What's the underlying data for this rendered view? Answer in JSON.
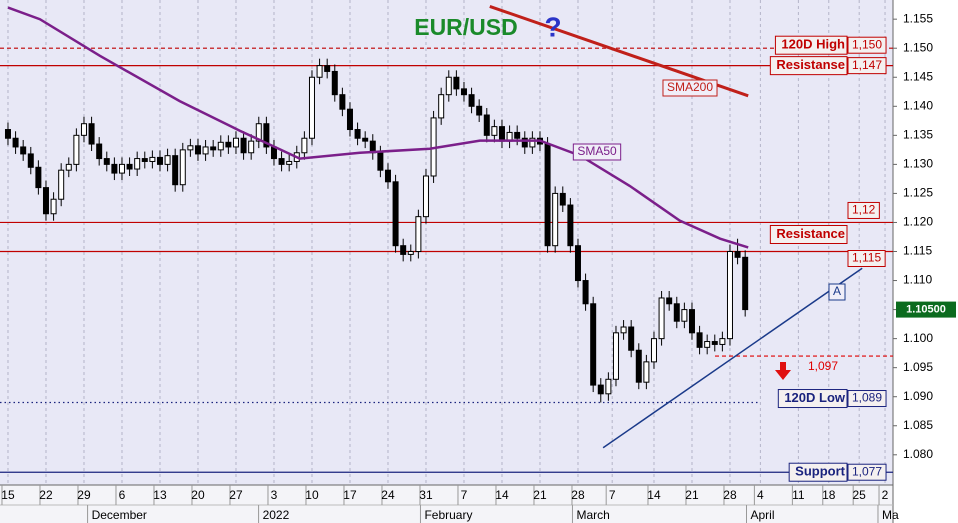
{
  "chart_data": {
    "type": "candlestick",
    "title": "EUR/USD",
    "title_mark": "?",
    "grid": true,
    "up_color": "#ffffff",
    "down_color": "#000000",
    "x": [
      0,
      1,
      2,
      3,
      4,
      5,
      6,
      7,
      8,
      9,
      10,
      11,
      12,
      13,
      14,
      15,
      16,
      17,
      18,
      19,
      20,
      21,
      22,
      23,
      24,
      25,
      26,
      27,
      28,
      29,
      30,
      31,
      32,
      33,
      34,
      35,
      36,
      37,
      38,
      39,
      40,
      41,
      42,
      43,
      44,
      45,
      46,
      47,
      48,
      49,
      50,
      51,
      52,
      53,
      54,
      55,
      56,
      57,
      58,
      59,
      60,
      61,
      62,
      63,
      64,
      65,
      66,
      67,
      68,
      69,
      70,
      71,
      72,
      73,
      74,
      75,
      76,
      77,
      78,
      79,
      80,
      81,
      82,
      83,
      84,
      85,
      86,
      87,
      88,
      89,
      90,
      91,
      92,
      93,
      94,
      95,
      96,
      97
    ],
    "open": [
      1.136,
      1.1345,
      1.133,
      1.1318,
      1.1295,
      1.126,
      1.1215,
      1.124,
      1.129,
      1.13,
      1.135,
      1.137,
      1.1335,
      1.131,
      1.13,
      1.1285,
      1.13,
      1.1292,
      1.131,
      1.1305,
      1.1312,
      1.13,
      1.1315,
      1.1265,
      1.1325,
      1.1332,
      1.1318,
      1.133,
      1.1325,
      1.1338,
      1.133,
      1.1345,
      1.132,
      1.134,
      1.137,
      1.133,
      1.131,
      1.13,
      1.1305,
      1.132,
      1.1345,
      1.145,
      1.147,
      1.146,
      1.142,
      1.1395,
      1.136,
      1.1345,
      1.134,
      1.132,
      1.129,
      1.127,
      1.116,
      1.1145,
      1.115,
      1.121,
      1.128,
      1.138,
      1.142,
      1.145,
      1.143,
      1.142,
      1.14,
      1.1385,
      1.135,
      1.1365,
      1.134,
      1.1355,
      1.1345,
      1.133,
      1.1345,
      1.1335,
      1.116,
      1.125,
      1.123,
      1.116,
      1.11,
      1.106,
      1.092,
      1.0905,
      1.093,
      1.101,
      1.102,
      1.098,
      1.0925,
      1.096,
      1.1,
      1.107,
      1.106,
      1.103,
      1.105,
      1.101,
      1.0985,
      1.0995,
      1.099,
      1.1,
      1.115,
      1.114
    ],
    "high": [
      1.1372,
      1.1357,
      1.1342,
      1.133,
      1.1307,
      1.1272,
      1.1252,
      1.1302,
      1.1312,
      1.1362,
      1.1382,
      1.1382,
      1.1347,
      1.1322,
      1.1312,
      1.1312,
      1.1312,
      1.1322,
      1.1322,
      1.1324,
      1.1324,
      1.1327,
      1.1327,
      1.1337,
      1.1344,
      1.1344,
      1.1342,
      1.1342,
      1.135,
      1.135,
      1.1357,
      1.1357,
      1.1352,
      1.1382,
      1.1382,
      1.1342,
      1.1322,
      1.1317,
      1.1332,
      1.1357,
      1.1462,
      1.1482,
      1.1482,
      1.1472,
      1.1432,
      1.1407,
      1.1372,
      1.1357,
      1.1352,
      1.1332,
      1.1302,
      1.1282,
      1.1172,
      1.1162,
      1.1222,
      1.1292,
      1.1392,
      1.1432,
      1.1462,
      1.1462,
      1.1442,
      1.1432,
      1.1412,
      1.1397,
      1.1377,
      1.1377,
      1.1367,
      1.1367,
      1.1357,
      1.1357,
      1.1357,
      1.1347,
      1.1262,
      1.1262,
      1.1242,
      1.1172,
      1.1112,
      1.1072,
      1.0932,
      1.0942,
      1.1022,
      1.1032,
      1.1032,
      1.0992,
      1.0972,
      1.1012,
      1.1082,
      1.1082,
      1.1072,
      1.1062,
      1.1062,
      1.1022,
      1.1007,
      1.1007,
      1.1012,
      1.1162,
      1.1172,
      1.1152
    ],
    "low": [
      1.1333,
      1.1318,
      1.1306,
      1.1283,
      1.1248,
      1.1203,
      1.1203,
      1.1228,
      1.1278,
      1.1288,
      1.1338,
      1.1323,
      1.1298,
      1.1288,
      1.1273,
      1.1273,
      1.128,
      1.128,
      1.1293,
      1.1293,
      1.1288,
      1.1288,
      1.1253,
      1.1253,
      1.1313,
      1.1306,
      1.1306,
      1.1313,
      1.1313,
      1.1318,
      1.1318,
      1.1308,
      1.1308,
      1.1328,
      1.1318,
      1.1298,
      1.1288,
      1.1288,
      1.1293,
      1.1308,
      1.1333,
      1.1438,
      1.1448,
      1.1408,
      1.1383,
      1.1348,
      1.1333,
      1.1328,
      1.1308,
      1.1278,
      1.1258,
      1.1148,
      1.1133,
      1.1133,
      1.1138,
      1.1198,
      1.1268,
      1.1368,
      1.1408,
      1.1418,
      1.1408,
      1.1388,
      1.1373,
      1.1338,
      1.1338,
      1.1328,
      1.1328,
      1.1333,
      1.1318,
      1.1318,
      1.1323,
      1.1148,
      1.1148,
      1.1218,
      1.1148,
      1.1088,
      1.1048,
      1.0908,
      1.089,
      1.0893,
      1.0918,
      1.0998,
      1.0968,
      1.0913,
      1.0913,
      1.0948,
      1.0988,
      1.1048,
      1.1018,
      1.1018,
      1.0998,
      1.0973,
      1.0973,
      1.0978,
      1.0978,
      1.0988,
      1.1128,
      1.1038
    ],
    "close": [
      1.1345,
      1.133,
      1.1318,
      1.1295,
      1.126,
      1.1215,
      1.124,
      1.129,
      1.13,
      1.135,
      1.137,
      1.1335,
      1.131,
      1.13,
      1.1285,
      1.13,
      1.1292,
      1.131,
      1.1305,
      1.1312,
      1.13,
      1.1315,
      1.1265,
      1.1325,
      1.1332,
      1.1318,
      1.133,
      1.1325,
      1.1338,
      1.133,
      1.1345,
      1.132,
      1.134,
      1.137,
      1.133,
      1.131,
      1.13,
      1.1305,
      1.132,
      1.1345,
      1.145,
      1.147,
      1.146,
      1.142,
      1.1395,
      1.136,
      1.1345,
      1.134,
      1.132,
      1.129,
      1.127,
      1.116,
      1.1145,
      1.115,
      1.121,
      1.128,
      1.138,
      1.142,
      1.145,
      1.143,
      1.142,
      1.14,
      1.1385,
      1.135,
      1.1365,
      1.134,
      1.1355,
      1.1345,
      1.133,
      1.1345,
      1.1335,
      1.116,
      1.125,
      1.123,
      1.116,
      1.11,
      1.106,
      1.092,
      1.0905,
      1.093,
      1.101,
      1.102,
      1.098,
      1.0925,
      1.096,
      1.1,
      1.107,
      1.106,
      1.103,
      1.105,
      1.101,
      1.0985,
      1.0995,
      1.099,
      1.1,
      1.115,
      1.114,
      1.105
    ],
    "xlim": [
      -1.05,
      116.45
    ],
    "ylim": [
      1.0748,
      1.1583
    ],
    "xticks": [
      {
        "value": 0,
        "label": "15"
      },
      {
        "value": 5,
        "label": "22"
      },
      {
        "value": 10,
        "label": "29"
      },
      {
        "value": 15,
        "label": "6"
      },
      {
        "value": 20,
        "label": "13"
      },
      {
        "value": 25,
        "label": "20"
      },
      {
        "value": 30,
        "label": "27"
      },
      {
        "value": 35,
        "label": "3"
      },
      {
        "value": 40,
        "label": "10"
      },
      {
        "value": 45,
        "label": "17"
      },
      {
        "value": 50,
        "label": "24"
      },
      {
        "value": 55,
        "label": "31"
      },
      {
        "value": 60,
        "label": "7"
      },
      {
        "value": 65,
        "label": "14"
      },
      {
        "value": 70,
        "label": "21"
      },
      {
        "value": 75,
        "label": "28"
      },
      {
        "value": 79.5,
        "label": "7"
      },
      {
        "value": 85,
        "label": "14"
      },
      {
        "value": 90,
        "label": "21"
      },
      {
        "value": 95,
        "label": "28"
      },
      {
        "value": 99,
        "label": "4"
      },
      {
        "value": 104,
        "label": "11"
      },
      {
        "value": 108,
        "label": "18"
      },
      {
        "value": 112,
        "label": "25"
      },
      {
        "value": 115.4,
        "label": "2"
      }
    ],
    "months": [
      {
        "value": 11,
        "label": "December"
      },
      {
        "value": 33.5,
        "label": "2022"
      },
      {
        "value": 54.8,
        "label": "February"
      },
      {
        "value": 74.8,
        "label": "March"
      },
      {
        "value": 97.7,
        "label": "April"
      },
      {
        "value": 115,
        "label": "Ma"
      }
    ],
    "yticks": [
      1.155,
      {
        "value": 1.15,
        "label": "1.150"
      },
      1.145,
      {
        "value": 1.14,
        "label": "1.140"
      },
      1.135,
      {
        "value": 1.13,
        "label": "1.130"
      },
      1.125,
      {
        "value": 1.12,
        "label": "1.120"
      },
      1.115,
      {
        "value": 1.11,
        "label": "1.110"
      },
      1.105,
      {
        "value": 1.1,
        "label": "1.100"
      },
      1.095,
      {
        "value": 1.09,
        "label": "1.090"
      },
      1.085,
      {
        "value": 1.08,
        "label": "1.080"
      }
    ],
    "levels": [
      {
        "name": "120D High",
        "value": 1.15,
        "label": "1,150",
        "color": "#c00000",
        "style": "dashed"
      },
      {
        "name": "Resistanse",
        "value": 1.147,
        "label": "1,147",
        "color": "#c00000",
        "style": "solid"
      },
      {
        "value": 1.12,
        "label": "1,12",
        "color": "#c00000",
        "style": "solid"
      },
      {
        "name": "Resistance",
        "value": 1.115,
        "label": "1,115",
        "color": "#c00000",
        "style": "solid"
      },
      {
        "value": 1.097,
        "label": "1,097",
        "color": "#e00000",
        "style": "dashed"
      },
      {
        "name": "120D Low",
        "value": 1.089,
        "label": "1,089",
        "color": "#1a237e",
        "style": "dotted"
      },
      {
        "name": "Support",
        "value": 1.077,
        "label": "1,077",
        "color": "#1a237e",
        "style": "solid"
      }
    ],
    "lines": [
      {
        "name": "SMA200",
        "color": "#c0201a",
        "width": 3,
        "x": [
          63.4,
          97.4
        ],
        "values": [
          1.1572,
          1.1418
        ]
      },
      {
        "name": "SMA50",
        "color": "#7b1f8a",
        "width": 2.5,
        "x": [
          0,
          4.2,
          12.1,
          22.6,
          30.5,
          38.4,
          46.3,
          55.5,
          62.1,
          70,
          75.3,
          81.8,
          88.4,
          93.7,
          97.4
        ],
        "values": [
          1.157,
          1.155,
          1.1487,
          1.1409,
          1.1358,
          1.131,
          1.132,
          1.1327,
          1.1341,
          1.1341,
          1.1315,
          1.1263,
          1.1203,
          1.1172,
          1.1157
        ]
      },
      {
        "name": "A",
        "color": "#1a3a8a",
        "width": 1.5,
        "x": [
          78.3,
          112.4
        ],
        "values": [
          1.0812,
          1.1121
        ]
      }
    ],
    "last_price": {
      "value": 1.105,
      "label": "1.10500",
      "color": "#0b6b1e"
    }
  }
}
